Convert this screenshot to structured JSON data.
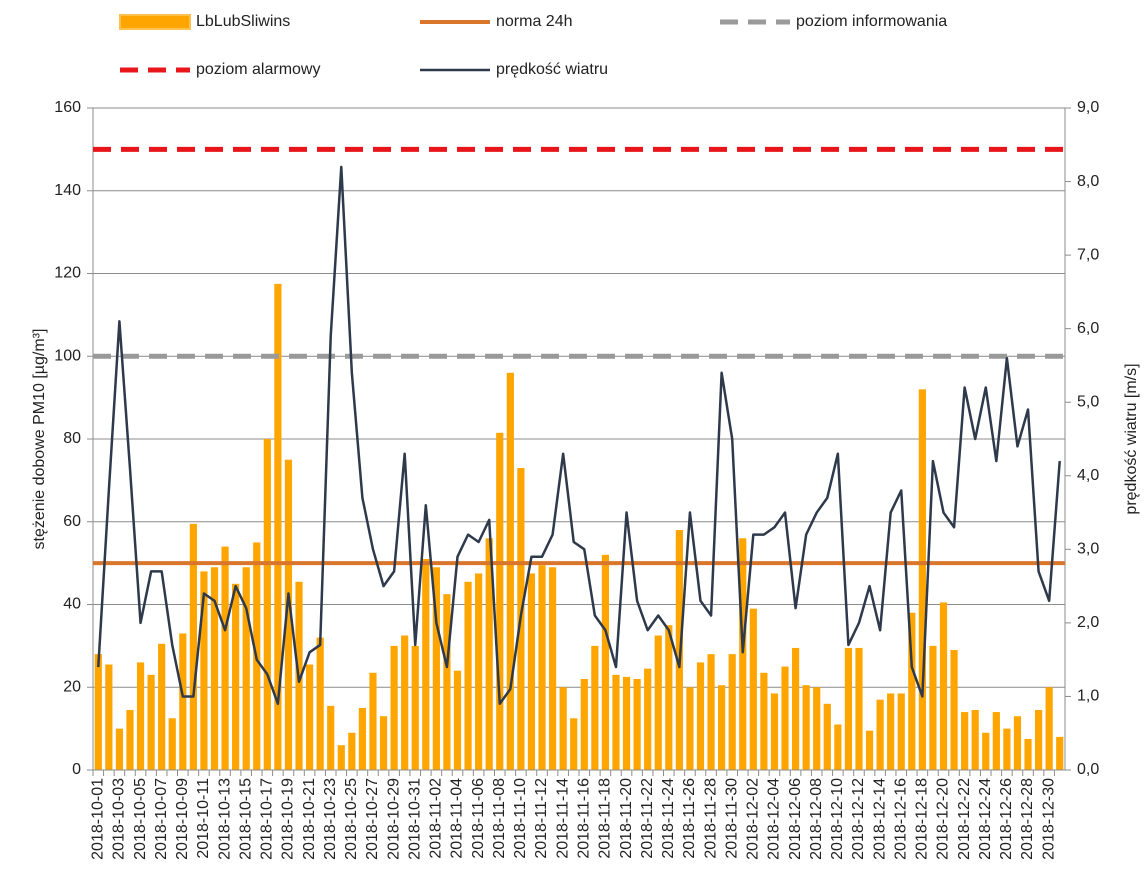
{
  "chart_data": {
    "type": "bar_line",
    "y_label": "stężenie dobowe PM10 [µg/m³]",
    "y2_label": "prędkość wiatru [m/s]",
    "categories": [
      "2018-10-01",
      null,
      "2018-10-03",
      null,
      "2018-10-05",
      null,
      "2018-10-07",
      null,
      "2018-10-09",
      null,
      "2018-10-11",
      null,
      "2018-10-13",
      null,
      "2018-10-15",
      null,
      "2018-10-17",
      null,
      "2018-10-19",
      null,
      "2018-10-21",
      null,
      "2018-10-23",
      null,
      "2018-10-25",
      null,
      "2018-10-27",
      null,
      "2018-10-29",
      null,
      "2018-10-31",
      null,
      "2018-11-02",
      null,
      "2018-11-04",
      null,
      "2018-11-06",
      null,
      "2018-11-08",
      null,
      "2018-11-10",
      null,
      "2018-11-12",
      null,
      "2018-11-14",
      null,
      "2018-11-16",
      null,
      "2018-11-18",
      null,
      "2018-11-20",
      null,
      "2018-11-22",
      null,
      "2018-11-24",
      null,
      "2018-11-26",
      null,
      "2018-11-28",
      null,
      "2018-11-30",
      null,
      "2018-12-02",
      null,
      "2018-12-04",
      null,
      "2018-12-06",
      null,
      "2018-12-08",
      null,
      "2018-12-10",
      null,
      "2018-12-12",
      null,
      "2018-12-14",
      null,
      "2018-12-16",
      null,
      "2018-12-18",
      null,
      "2018-12-20",
      null,
      "2018-12-22",
      null,
      "2018-12-24",
      null,
      "2018-12-26",
      null,
      "2018-12-28",
      null,
      "2018-12-30",
      null
    ],
    "series": [
      {
        "name": "LbLubSliwins",
        "type": "bar",
        "color": "#ffa500",
        "values": [
          28,
          25.5,
          10,
          14.5,
          26,
          23,
          30.5,
          12.5,
          33,
          59.5,
          48,
          49,
          54,
          45,
          49,
          55,
          80,
          117.5,
          75,
          45.5,
          25.5,
          32,
          15.5,
          6,
          9,
          15,
          23.5,
          13,
          30,
          32.5,
          30,
          51,
          49,
          42.5,
          24,
          45.5,
          47.5,
          56,
          81.5,
          96,
          73,
          47.5,
          49.5,
          49,
          20,
          12.5,
          22,
          30,
          52,
          23,
          22.5,
          22,
          24.5,
          32.5,
          35,
          58,
          20,
          26,
          28,
          20.5,
          28,
          56,
          39,
          23.5,
          18.5,
          25,
          29.5,
          20.5,
          20,
          16,
          11,
          29.5,
          29.5,
          9.5,
          17,
          18.5,
          18.5,
          38,
          92,
          30,
          40.5,
          29,
          14,
          14.5,
          9,
          14,
          10,
          13,
          7.5,
          14.5,
          20,
          8
        ]
      },
      {
        "name": "prędkość wiatru",
        "type": "line",
        "axis": "y2",
        "color": "#2e3a4b",
        "values": [
          1.4,
          3.8,
          6.1,
          4.1,
          2.0,
          2.7,
          2.7,
          1.7,
          1.0,
          1.0,
          2.4,
          2.3,
          1.9,
          2.5,
          2.2,
          1.5,
          1.3,
          0.9,
          2.4,
          1.2,
          1.6,
          1.7,
          5.9,
          8.2,
          5.4,
          3.7,
          3.0,
          2.5,
          2.7,
          4.3,
          1.7,
          3.6,
          2.0,
          1.4,
          2.9,
          3.2,
          3.1,
          3.4,
          0.9,
          1.1,
          2.1,
          2.9,
          2.9,
          3.2,
          4.3,
          3.1,
          3.0,
          2.1,
          1.9,
          1.4,
          3.5,
          2.3,
          1.9,
          2.1,
          1.9,
          1.4,
          3.5,
          2.3,
          2.1,
          5.4,
          4.5,
          1.6,
          3.2,
          3.2,
          3.3,
          3.5,
          2.2,
          3.2,
          3.5,
          3.7,
          4.3,
          1.7,
          2.0,
          2.5,
          1.9,
          3.5,
          3.8,
          1.4,
          1.0,
          4.2,
          3.5,
          3.3,
          5.2,
          4.5,
          5.2,
          4.2,
          5.6,
          4.4,
          4.9,
          2.7,
          2.3,
          4.2
        ]
      }
    ],
    "reference_lines": [
      {
        "name": "norma 24h",
        "value": 50,
        "color": "#d9762b",
        "dashed": false
      },
      {
        "name": "poziom informowania",
        "value": 100,
        "color": "#9a9a9a",
        "dashed": true
      },
      {
        "name": "poziom alarmowy",
        "value": 150,
        "color": "#e8161b",
        "dashed": true
      }
    ],
    "legend_order": [
      "series.0",
      "reference_lines.0",
      "reference_lines.1",
      "reference_lines.2",
      "series.1"
    ],
    "ylim": [
      0,
      160
    ],
    "yticks": [
      0,
      20,
      40,
      60,
      80,
      100,
      120,
      140,
      160
    ],
    "y2lim": [
      0,
      9
    ],
    "y2ticks": [
      {
        "value": 0,
        "label": "0,0"
      },
      {
        "value": 1,
        "label": "1,0"
      },
      {
        "value": 2,
        "label": "2,0"
      },
      {
        "value": 3,
        "label": "3,0"
      },
      {
        "value": 4,
        "label": "4,0"
      },
      {
        "value": 5,
        "label": "5,0"
      },
      {
        "value": 6,
        "label": "6,0"
      },
      {
        "value": 7,
        "label": "7,0"
      },
      {
        "value": 8,
        "label": "8,0"
      },
      {
        "value": 9,
        "label": "9,0"
      }
    ],
    "grid": true
  }
}
